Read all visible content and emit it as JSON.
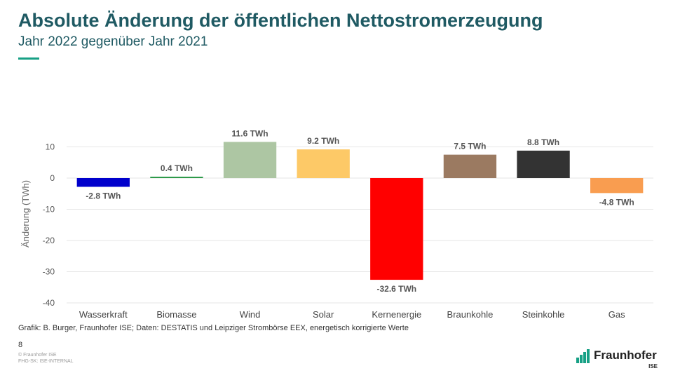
{
  "header": {
    "title": "Absolute Änderung der öffentlichen Nettostromerzeugung",
    "subtitle": "Jahr 2022 gegenüber Jahr 2021"
  },
  "chart_data": {
    "type": "bar",
    "ylabel": "Änderung (TWh)",
    "ylim": [
      -40,
      15
    ],
    "yticks": [
      10,
      0,
      -10,
      -20,
      -30,
      -40
    ],
    "grid": true,
    "categories": [
      "Wasserkraft",
      "Biomasse",
      "Wind",
      "Solar",
      "Kernenergie",
      "Braunkohle",
      "Steinkohle",
      "Gas"
    ],
    "values": [
      -2.8,
      0.4,
      11.6,
      9.2,
      -32.6,
      7.5,
      8.8,
      -4.8
    ],
    "data_labels": [
      "-2.8 TWh",
      "0.4 TWh",
      "11.6 TWh",
      "9.2 TWh",
      "-32.6 TWh",
      "7.5 TWh",
      "8.8 TWh",
      "-4.8 TWh"
    ],
    "colors": [
      "#0000cc",
      "#2e9a4a",
      "#adc6a3",
      "#fdc967",
      "#ff0000",
      "#9b7a61",
      "#333333",
      "#f99d50"
    ]
  },
  "footer": {
    "source": "Grafik: B. Burger, Fraunhofer ISE; Daten: DESTATIS und Leipziger Strombörse EEX, energetisch korrigierte Werte",
    "page_number": "8",
    "copyright_1": "© Fraunhofer ISE",
    "copyright_2": "FHG-SK: ISE-INTERNAL"
  },
  "logo": {
    "name": "Fraunhofer",
    "sub": "ISE",
    "color": "#17a085"
  }
}
